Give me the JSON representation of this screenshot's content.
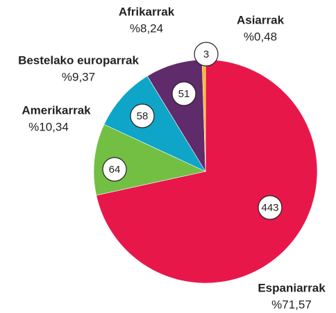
{
  "chart_data": {
    "type": "pie",
    "categories": [
      "Espaniarrak",
      "Amerikarrak",
      "Bestelako europarrak",
      "Afrikarrak",
      "Asiarrak"
    ],
    "values": [
      71.57,
      10.34,
      9.37,
      8.24,
      0.48
    ],
    "value_labels": [
      "%71,57",
      "%10,34",
      "%9,37",
      "%8,24",
      "%0,48"
    ],
    "counts": [
      443,
      64,
      58,
      51,
      3
    ],
    "colors": [
      "#e8174a",
      "#72bf44",
      "#0ea5c8",
      "#5f2b6b",
      "#fbb917"
    ]
  }
}
